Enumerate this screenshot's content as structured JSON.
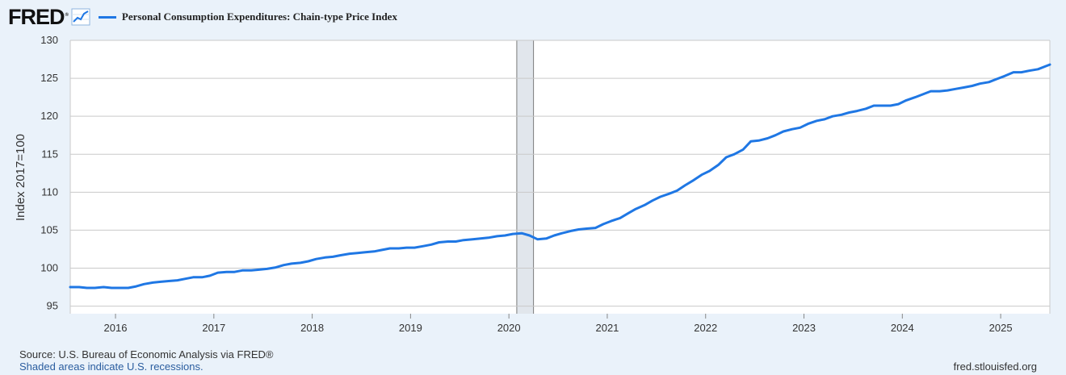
{
  "header": {
    "logo_text": "FRED",
    "logo_mark": "®",
    "icon": "line-graph-icon",
    "legend_label": "Personal Consumption Expenditures: Chain-type Price Index"
  },
  "footer": {
    "source": "Source: U.S. Bureau of Economic Analysis via FRED®",
    "note": "Shaded areas indicate U.S. recessions.",
    "site": "fred.stlouisfed.org"
  },
  "colors": {
    "line": "#1f77e4",
    "plot_bg": "#ffffff",
    "page_bg": "#eaf2fa",
    "grid": "#c9c9c9",
    "recession": "#e1e6ec"
  },
  "chart_data": {
    "type": "line",
    "title": "",
    "xlabel": "",
    "ylabel": "Index 2017=100",
    "xlim": [
      2015.54,
      2025.5
    ],
    "ylim": [
      94,
      130
    ],
    "y_ticks": [
      95,
      100,
      105,
      110,
      115,
      120,
      125,
      130
    ],
    "x_ticks": [
      2016,
      2017,
      2018,
      2019,
      2020,
      2021,
      2022,
      2023,
      2024,
      2025
    ],
    "grid": true,
    "legend_position": "top-left",
    "recessions": [
      [
        2020.08,
        2020.25
      ]
    ],
    "series": [
      {
        "name": "Personal Consumption Expenditures: Chain-type Price Index",
        "x": [
          2015.54,
          2015.63,
          2015.71,
          2015.79,
          2015.88,
          2015.96,
          2016.04,
          2016.13,
          2016.21,
          2016.29,
          2016.38,
          2016.46,
          2016.54,
          2016.63,
          2016.71,
          2016.79,
          2016.88,
          2016.96,
          2017.04,
          2017.13,
          2017.21,
          2017.29,
          2017.38,
          2017.46,
          2017.54,
          2017.63,
          2017.71,
          2017.79,
          2017.88,
          2017.96,
          2018.04,
          2018.13,
          2018.21,
          2018.29,
          2018.38,
          2018.46,
          2018.54,
          2018.63,
          2018.71,
          2018.79,
          2018.88,
          2018.96,
          2019.04,
          2019.13,
          2019.21,
          2019.29,
          2019.38,
          2019.46,
          2019.54,
          2019.63,
          2019.71,
          2019.79,
          2019.88,
          2019.96,
          2020.04,
          2020.13,
          2020.21,
          2020.29,
          2020.38,
          2020.46,
          2020.54,
          2020.63,
          2020.71,
          2020.79,
          2020.88,
          2020.96,
          2021.04,
          2021.13,
          2021.21,
          2021.29,
          2021.38,
          2021.46,
          2021.54,
          2021.63,
          2021.71,
          2021.79,
          2021.88,
          2021.96,
          2022.04,
          2022.13,
          2022.21,
          2022.29,
          2022.38,
          2022.46,
          2022.54,
          2022.63,
          2022.71,
          2022.79,
          2022.88,
          2022.96,
          2023.04,
          2023.13,
          2023.21,
          2023.29,
          2023.38,
          2023.46,
          2023.54,
          2023.63,
          2023.71,
          2023.79,
          2023.88,
          2023.96,
          2024.04,
          2024.13,
          2024.21,
          2024.29,
          2024.38,
          2024.46,
          2024.54,
          2024.63,
          2024.71,
          2024.79,
          2024.88,
          2024.96,
          2025.04,
          2025.13,
          2025.21,
          2025.29,
          2025.38,
          2025.46,
          2025.5
        ],
        "y": [
          97.5,
          97.5,
          97.4,
          97.4,
          97.5,
          97.4,
          97.4,
          97.4,
          97.6,
          97.9,
          98.1,
          98.2,
          98.3,
          98.4,
          98.6,
          98.8,
          98.8,
          99.0,
          99.4,
          99.5,
          99.5,
          99.7,
          99.7,
          99.8,
          99.9,
          100.1,
          100.4,
          100.6,
          100.7,
          100.9,
          101.2,
          101.4,
          101.5,
          101.7,
          101.9,
          102.0,
          102.1,
          102.2,
          102.4,
          102.6,
          102.6,
          102.7,
          102.7,
          102.9,
          103.1,
          103.4,
          103.5,
          103.5,
          103.7,
          103.8,
          103.9,
          104.0,
          104.2,
          104.3,
          104.5,
          104.6,
          104.3,
          103.8,
          103.9,
          104.3,
          104.6,
          104.9,
          105.1,
          105.2,
          105.3,
          105.8,
          106.2,
          106.6,
          107.2,
          107.8,
          108.3,
          108.9,
          109.4,
          109.8,
          110.2,
          110.9,
          111.6,
          112.3,
          112.8,
          113.6,
          114.6,
          115.0,
          115.6,
          116.7,
          116.8,
          117.1,
          117.5,
          118.0,
          118.3,
          118.5,
          119.0,
          119.4,
          119.6,
          120.0,
          120.2,
          120.5,
          120.7,
          121.0,
          121.4,
          121.4,
          121.4,
          121.6,
          122.1,
          122.5,
          122.9,
          123.3,
          123.3,
          123.4,
          123.6,
          123.8,
          124.0,
          124.3,
          124.5,
          124.9,
          125.3,
          125.8,
          125.8,
          126.0,
          126.2,
          126.6,
          126.8
        ]
      }
    ]
  }
}
